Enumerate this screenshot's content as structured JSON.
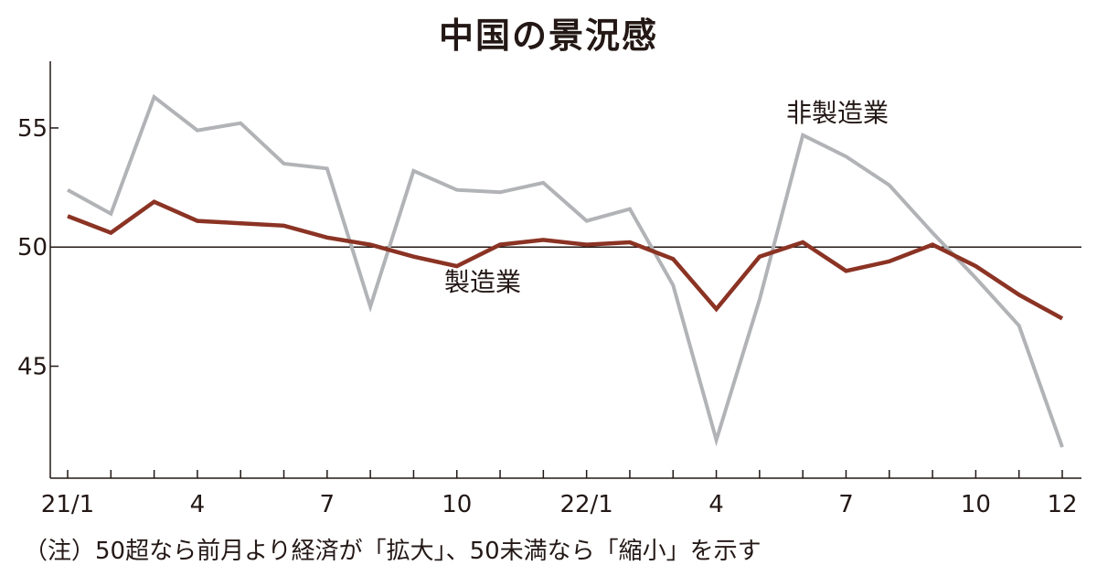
{
  "chart_data": {
    "type": "line",
    "title": "中国の景況感",
    "note": "（注）50超なら前月より経済が「拡大」、50未満なら「縮小」を示す",
    "x_tick_labels": [
      "21/1",
      "4",
      "7",
      "10",
      "22/1",
      "4",
      "7",
      "10",
      "12"
    ],
    "x_tick_label_months": [
      "2021-01",
      "2021-04",
      "2021-07",
      "2021-10",
      "2022-01",
      "2022-04",
      "2022-07",
      "2022-10",
      "2022-12"
    ],
    "x": [
      "2021-01",
      "2021-02",
      "2021-03",
      "2021-04",
      "2021-05",
      "2021-06",
      "2021-07",
      "2021-08",
      "2021-09",
      "2021-10",
      "2021-11",
      "2021-12",
      "2022-01",
      "2022-02",
      "2022-03",
      "2022-04",
      "2022-05",
      "2022-06",
      "2022-07",
      "2022-08",
      "2022-09",
      "2022-10",
      "2022-11",
      "2022-12"
    ],
    "yticks": [
      45,
      50,
      55
    ],
    "ylim": [
      40.3,
      57.8
    ],
    "reference_line": 50,
    "grid": false,
    "series": [
      {
        "name": "非製造業",
        "color": "#b1b3b6",
        "values": [
          52.4,
          51.4,
          56.3,
          54.9,
          55.2,
          53.5,
          53.3,
          47.5,
          53.2,
          52.4,
          52.3,
          52.7,
          51.1,
          51.6,
          48.4,
          41.9,
          47.8,
          54.7,
          53.8,
          52.6,
          50.6,
          48.7,
          46.7,
          41.6
        ]
      },
      {
        "name": "製造業",
        "color": "#8b3324",
        "values": [
          51.3,
          50.6,
          51.9,
          51.1,
          51.0,
          50.9,
          50.4,
          50.1,
          49.6,
          49.2,
          50.1,
          50.3,
          50.1,
          50.2,
          49.5,
          47.4,
          49.6,
          50.2,
          49.0,
          49.4,
          50.1,
          49.2,
          48.0,
          47.0
        ]
      }
    ]
  }
}
